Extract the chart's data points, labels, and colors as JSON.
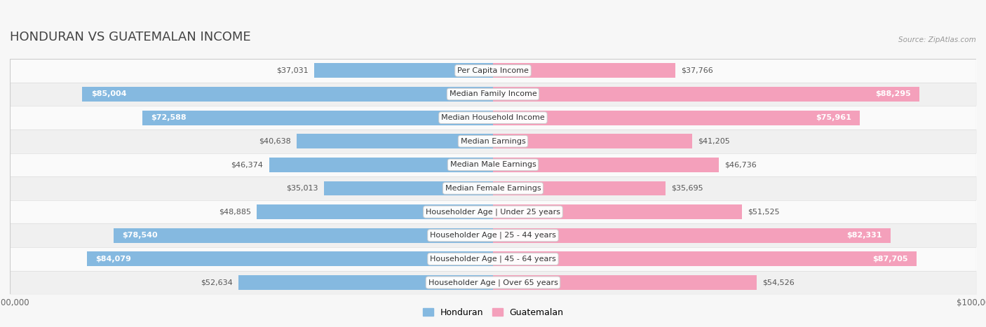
{
  "title": "HONDURAN VS GUATEMALAN INCOME",
  "source": "Source: ZipAtlas.com",
  "categories": [
    "Per Capita Income",
    "Median Family Income",
    "Median Household Income",
    "Median Earnings",
    "Median Male Earnings",
    "Median Female Earnings",
    "Householder Age | Under 25 years",
    "Householder Age | 25 - 44 years",
    "Householder Age | 45 - 64 years",
    "Householder Age | Over 65 years"
  ],
  "honduran": [
    37031,
    85004,
    72588,
    40638,
    46374,
    35013,
    48885,
    78540,
    84079,
    52634
  ],
  "guatemalan": [
    37766,
    88295,
    75961,
    41205,
    46736,
    35695,
    51525,
    82331,
    87705,
    54526
  ],
  "honduran_labels": [
    "$37,031",
    "$85,004",
    "$72,588",
    "$40,638",
    "$46,374",
    "$35,013",
    "$48,885",
    "$78,540",
    "$84,079",
    "$52,634"
  ],
  "guatemalan_labels": [
    "$37,766",
    "$88,295",
    "$75,961",
    "$41,205",
    "$46,736",
    "$35,695",
    "$51,525",
    "$82,331",
    "$87,705",
    "$54,526"
  ],
  "color_honduran": "#85b9e0",
  "color_guatemalan": "#f4a0bb",
  "max_val": 100000,
  "bar_height": 0.62,
  "bg_color": "#f7f7f7",
  "row_bg_even": "#f0f0f0",
  "row_bg_odd": "#fafafa",
  "title_fontsize": 13,
  "label_fontsize": 8,
  "category_fontsize": 8,
  "axis_label_fontsize": 8.5,
  "honduran_threshold": 58000,
  "guatemalan_threshold": 58000
}
